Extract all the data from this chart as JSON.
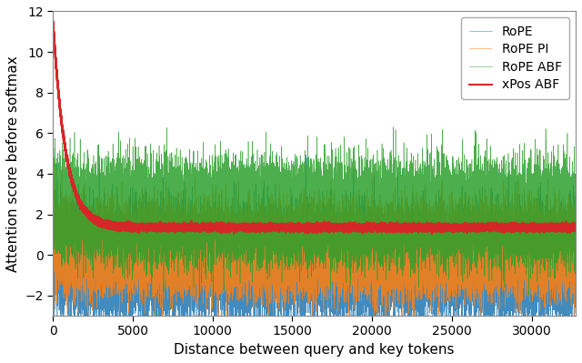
{
  "title": "",
  "xlabel": "Distance between query and key tokens",
  "ylabel": "Attention score before softmax",
  "xlim": [
    0,
    32768
  ],
  "ylim": [
    -3,
    12
  ],
  "yticks": [
    -2,
    0,
    2,
    4,
    6,
    8,
    10,
    12
  ],
  "xticks": [
    0,
    5000,
    10000,
    15000,
    20000,
    25000,
    30000
  ],
  "colors": {
    "RoPE": "#1f77b4",
    "RoPE PI": "#ff7f0e",
    "RoPE ABF": "#2ca02c",
    "xPos ABF": "#d62728"
  },
  "n_points": 32768,
  "seed": 42,
  "background_color": "#ffffff",
  "legend_entries": [
    "RoPE",
    "RoPE PI",
    "RoPE ABF",
    "xPos ABF"
  ],
  "rope_start": 4.0,
  "rope_end": -0.5,
  "rope_noise_amp": 1.2,
  "rope_pi_start": 4.2,
  "rope_pi_end": 0.2,
  "rope_pi_noise_amp": 1.0,
  "rope_abf_start": 5.8,
  "rope_abf_end": 2.0,
  "rope_abf_noise_amp": 1.1,
  "xpos_abf_start": 11.5,
  "xpos_abf_end": 1.35,
  "xpos_abf_noise_amp": 0.08
}
